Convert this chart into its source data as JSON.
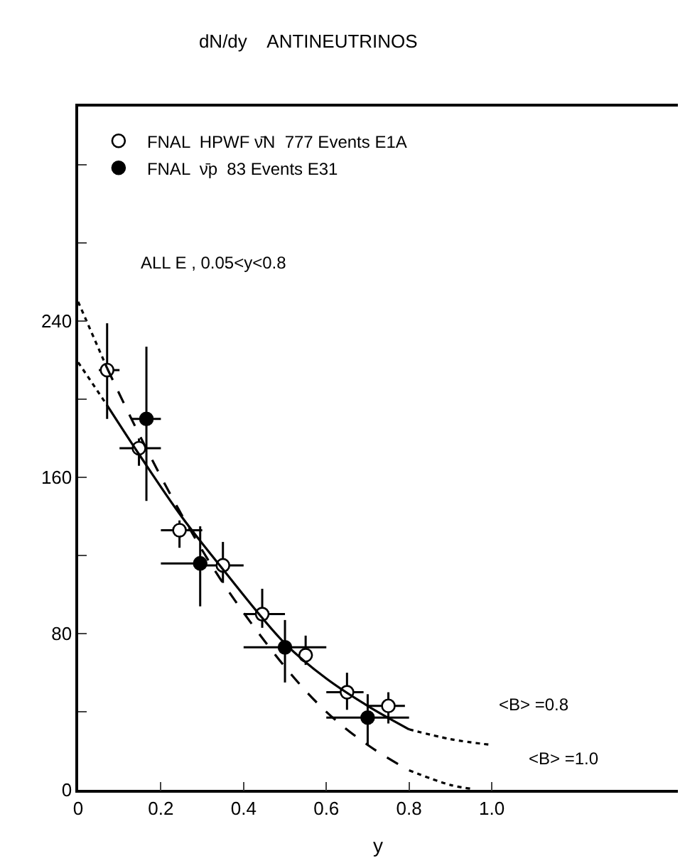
{
  "chart_data": {
    "type": "scatter",
    "title": "dN/dy    ANTINEUTRINOS",
    "xlabel": "y",
    "xlim": [
      0,
      1.45
    ],
    "ylim": [
      0,
      350
    ],
    "xticks": [
      0,
      {
        "value": 0.2,
        "label": "0.2"
      },
      {
        "value": 0.4,
        "label": "0.4"
      },
      {
        "value": 0.6,
        "label": "0.6"
      },
      {
        "value": 0.8,
        "label": "0.8"
      },
      {
        "value": 1.0,
        "label": "1.0"
      }
    ],
    "yticks": [
      0,
      {
        "value": 40,
        "label": null
      },
      80,
      {
        "value": 120,
        "label": null
      },
      160,
      {
        "value": 200,
        "label": null
      },
      240,
      {
        "value": 280,
        "label": null
      },
      {
        "value": 320,
        "label": null
      }
    ],
    "legend": "top left",
    "marker": "circle",
    "series": [
      {
        "name": "FNAL  HPWF ν̄N  777 Events E1A",
        "color": "#ffffff",
        "x": [
          0.07,
          0.147,
          0.245,
          0.35,
          0.445,
          0.55,
          0.65,
          0.75
        ],
        "values": [
          215,
          175,
          133,
          115,
          90,
          69,
          50,
          43
        ],
        "errors": [
          [
            190,
            239
          ],
          [
            166,
            180
          ],
          [
            124,
            138
          ],
          [
            106,
            127
          ],
          [
            83,
            103
          ],
          [
            64,
            79
          ],
          [
            41,
            60
          ],
          [
            34,
            50
          ]
        ],
        "xerrors": [
          [
            0.05,
            0.1
          ],
          [
            0.1,
            0.2
          ],
          [
            0.2,
            0.3
          ],
          [
            0.3,
            0.4
          ],
          [
            0.4,
            0.5
          ],
          null,
          [
            0.6,
            0.69
          ],
          [
            0.7,
            0.79
          ]
        ]
      },
      {
        "name": "FNAL  ν̄p  83 Events E31",
        "color": "#000000",
        "x": [
          0.165,
          0.295,
          0.5,
          0.7
        ],
        "values": [
          190,
          116,
          73,
          37
        ],
        "errors": [
          [
            148,
            227
          ],
          [
            94,
            135
          ],
          [
            55,
            87
          ],
          [
            23,
            49
          ]
        ],
        "xerrors": [
          [
            0.13,
            0.2
          ],
          [
            0.2,
            0.3
          ],
          [
            0.4,
            0.6
          ],
          [
            0.6,
            0.8
          ]
        ]
      },
      {
        "color": "#000000",
        "type": "line",
        "line_style": "solid",
        "marker": "none",
        "x": [
          0.07,
          0.15,
          0.25,
          0.35,
          0.5,
          0.6,
          0.7,
          0.8
        ],
        "values": [
          197,
          171,
          140,
          113,
          75,
          57,
          43,
          31
        ]
      },
      {
        "color": "#000000",
        "type": "line",
        "line_style": "dotted",
        "marker": "none",
        "x": [
          0,
          0.07,
          null,
          0.8,
          0.9,
          1.0
        ],
        "values": [
          219,
          197,
          null,
          31,
          26,
          23
        ]
      },
      {
        "color": "#000000",
        "type": "line",
        "line_style": "dashed",
        "marker": "none",
        "x": [
          0.07,
          0.15,
          0.25,
          0.35,
          0.5,
          0.6,
          0.7,
          0.8
        ],
        "values": [
          216,
          181,
          141,
          106,
          63,
          40,
          23,
          10
        ]
      },
      {
        "color": "#000000",
        "type": "line",
        "line_style": "dotted",
        "marker": "none",
        "x": [
          0,
          0.07,
          null,
          0.8,
          0.9,
          0.95
        ],
        "values": [
          250,
          216,
          null,
          10,
          2.5,
          0.6
        ]
      }
    ],
    "annotations": [
      "ALL E , 0.05<y<0.8",
      "<B> =0.8",
      "<B> =1.0"
    ]
  }
}
